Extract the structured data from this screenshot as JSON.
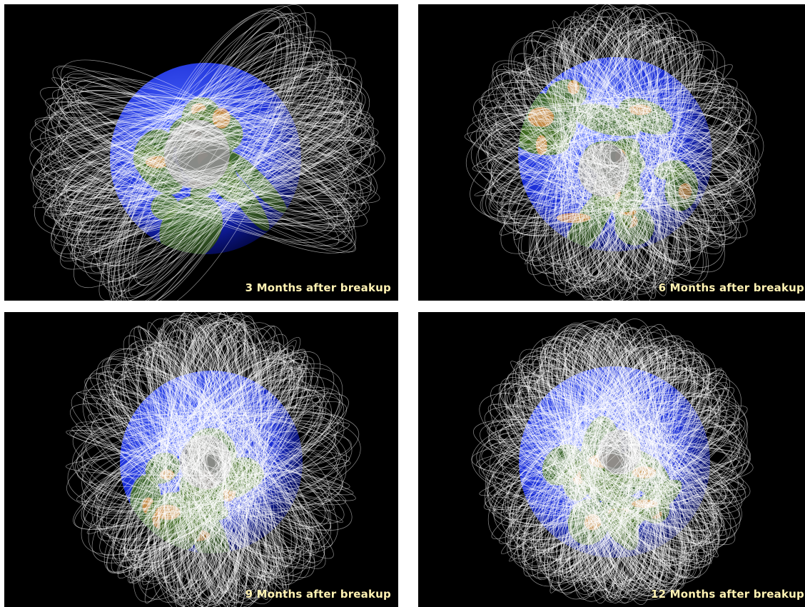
{
  "colors": {
    "background": "#000000",
    "caption": "#fff2b3",
    "ocean": "#1a2ed6",
    "land": "#3f6a1e",
    "desert": "#d9904a",
    "pole": "#8c8c8c",
    "orbit": "#ffffff"
  },
  "panels": [
    {
      "caption": "3 Months after breakup"
    },
    {
      "caption": "6 Months after breakup"
    },
    {
      "caption": "9 Months after breakup"
    },
    {
      "caption": "12 Months after breakup"
    }
  ]
}
